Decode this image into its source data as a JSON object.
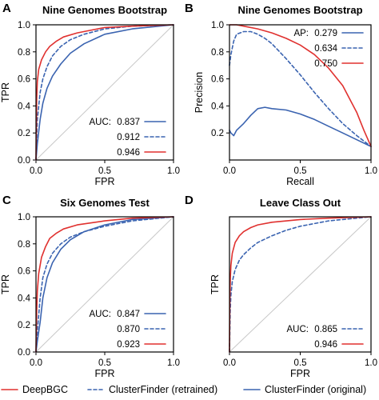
{
  "colors": {
    "deepbgc": "#e0312f",
    "cf_retrained": "#3a63b0",
    "cf_original": "#3a63b0",
    "diagonal": "#c8c8c8"
  },
  "legend": {
    "items": [
      {
        "label": "DeepBGC",
        "key": "deepbgc",
        "dash": "solid"
      },
      {
        "label": "ClusterFinder (retrained)",
        "key": "cf_retrained",
        "dash": "dashed"
      },
      {
        "label": "ClusterFinder (original)",
        "key": "cf_original",
        "dash": "solid"
      }
    ]
  },
  "chart_data": [
    {
      "panel": "A",
      "type": "line",
      "title": "Nine Genomes Bootstrap",
      "xlabel": "FPR",
      "ylabel": "TPR",
      "xlim": [
        0,
        1
      ],
      "ylim": [
        0,
        1
      ],
      "xticks": [
        "0.0",
        "0.5",
        "1.0"
      ],
      "yticks": [
        "0.0",
        "0.2",
        "0.4",
        "0.6",
        "0.8",
        "1.0"
      ],
      "diagonal": true,
      "legend_title": "AUC:",
      "legend_position": "bottom-right",
      "series": [
        {
          "key": "cf_original",
          "dash": "solid",
          "label": "0.837",
          "x": [
            0,
            0.01,
            0.03,
            0.05,
            0.08,
            0.12,
            0.18,
            0.25,
            0.35,
            0.5,
            0.7,
            1.0
          ],
          "y": [
            0,
            0.12,
            0.3,
            0.42,
            0.53,
            0.62,
            0.71,
            0.79,
            0.86,
            0.93,
            0.97,
            1.0
          ]
        },
        {
          "key": "cf_retrained",
          "dash": "dashed",
          "label": "0.912",
          "x": [
            0,
            0.01,
            0.03,
            0.05,
            0.08,
            0.12,
            0.18,
            0.25,
            0.35,
            0.5,
            0.7,
            1.0
          ],
          "y": [
            0,
            0.3,
            0.5,
            0.6,
            0.69,
            0.77,
            0.84,
            0.89,
            0.93,
            0.97,
            0.99,
            1.0
          ]
        },
        {
          "key": "deepbgc",
          "dash": "solid",
          "label": "0.946",
          "x": [
            0,
            0.005,
            0.01,
            0.02,
            0.04,
            0.07,
            0.1,
            0.15,
            0.2,
            0.3,
            0.5,
            0.7,
            1.0
          ],
          "y": [
            0,
            0.45,
            0.58,
            0.67,
            0.74,
            0.8,
            0.84,
            0.88,
            0.91,
            0.94,
            0.98,
            0.99,
            1.0
          ]
        }
      ]
    },
    {
      "panel": "B",
      "type": "line",
      "title": "Nine Genomes Bootstrap",
      "xlabel": "Recall",
      "ylabel": "Precision",
      "xlim": [
        0,
        1
      ],
      "ylim": [
        0.0,
        1.0
      ],
      "xticks": [
        "0.0",
        "0.5",
        "1.0"
      ],
      "yticks": [
        "0.2",
        "0.4",
        "0.6",
        "0.8",
        "1.0"
      ],
      "diagonal": false,
      "legend_title": "AP:",
      "legend_position": "top-right",
      "series": [
        {
          "key": "cf_original",
          "dash": "solid",
          "label": "0.279",
          "x": [
            0,
            0.01,
            0.03,
            0.05,
            0.1,
            0.15,
            0.2,
            0.25,
            0.3,
            0.4,
            0.5,
            0.6,
            0.7,
            0.8,
            0.9,
            1.0
          ],
          "y": [
            0.22,
            0.2,
            0.18,
            0.22,
            0.27,
            0.33,
            0.38,
            0.39,
            0.38,
            0.37,
            0.34,
            0.3,
            0.25,
            0.2,
            0.15,
            0.1
          ]
        },
        {
          "key": "cf_retrained",
          "dash": "dashed",
          "label": "0.634",
          "x": [
            0,
            0.01,
            0.03,
            0.05,
            0.1,
            0.15,
            0.2,
            0.25,
            0.3,
            0.4,
            0.5,
            0.6,
            0.7,
            0.8,
            0.9,
            1.0
          ],
          "y": [
            0.7,
            0.78,
            0.88,
            0.93,
            0.95,
            0.95,
            0.93,
            0.9,
            0.86,
            0.75,
            0.63,
            0.5,
            0.38,
            0.27,
            0.18,
            0.1
          ]
        },
        {
          "key": "deepbgc",
          "dash": "solid",
          "label": "0.750",
          "x": [
            0,
            0.05,
            0.1,
            0.2,
            0.3,
            0.4,
            0.5,
            0.6,
            0.7,
            0.8,
            0.9,
            0.95,
            1.0
          ],
          "y": [
            1.0,
            1.0,
            0.99,
            0.97,
            0.94,
            0.9,
            0.85,
            0.78,
            0.68,
            0.55,
            0.35,
            0.22,
            0.1
          ]
        }
      ]
    },
    {
      "panel": "C",
      "type": "line",
      "title": "Six Genomes Test",
      "xlabel": "FPR",
      "ylabel": "TPR",
      "xlim": [
        0,
        1
      ],
      "ylim": [
        0,
        1
      ],
      "xticks": [
        "0.0",
        "0.5",
        "1.0"
      ],
      "yticks": [
        "0.0",
        "0.2",
        "0.4",
        "0.6",
        "0.8",
        "1.0"
      ],
      "diagonal": true,
      "legend_title": "AUC:",
      "legend_position": "bottom-right",
      "series": [
        {
          "key": "cf_original",
          "dash": "solid",
          "label": "0.847",
          "x": [
            0,
            0.01,
            0.03,
            0.05,
            0.08,
            0.12,
            0.18,
            0.25,
            0.35,
            0.5,
            0.7,
            1.0
          ],
          "y": [
            0,
            0.08,
            0.22,
            0.4,
            0.55,
            0.66,
            0.76,
            0.83,
            0.89,
            0.94,
            0.98,
            1.0
          ]
        },
        {
          "key": "cf_retrained",
          "dash": "dashed",
          "label": "0.870",
          "x": [
            0,
            0.01,
            0.03,
            0.05,
            0.08,
            0.12,
            0.18,
            0.25,
            0.35,
            0.5,
            0.7,
            1.0
          ],
          "y": [
            0,
            0.15,
            0.4,
            0.55,
            0.65,
            0.73,
            0.8,
            0.85,
            0.89,
            0.93,
            0.97,
            1.0
          ]
        },
        {
          "key": "deepbgc",
          "dash": "solid",
          "label": "0.923",
          "x": [
            0,
            0.005,
            0.01,
            0.02,
            0.04,
            0.07,
            0.1,
            0.15,
            0.2,
            0.3,
            0.5,
            0.7,
            1.0
          ],
          "y": [
            0,
            0.3,
            0.45,
            0.58,
            0.7,
            0.78,
            0.84,
            0.88,
            0.91,
            0.94,
            0.97,
            0.99,
            1.0
          ]
        }
      ]
    },
    {
      "panel": "D",
      "type": "line",
      "title": "Leave Class Out",
      "xlabel": "FPR",
      "ylabel": "TPR",
      "xlim": [
        0,
        1
      ],
      "ylim": [
        0,
        1
      ],
      "xticks": [
        "0.0",
        "0.5",
        "1.0"
      ],
      "yticks": [],
      "diagonal": true,
      "legend_title": "AUC:",
      "legend_position": "bottom-right",
      "series": [
        {
          "key": "cf_retrained",
          "dash": "dashed",
          "label": "0.865",
          "x": [
            0,
            0.005,
            0.01,
            0.02,
            0.04,
            0.07,
            0.1,
            0.15,
            0.2,
            0.3,
            0.4,
            0.5,
            0.7,
            1.0
          ],
          "y": [
            0,
            0.3,
            0.42,
            0.52,
            0.61,
            0.68,
            0.72,
            0.77,
            0.81,
            0.86,
            0.9,
            0.93,
            0.97,
            1.0
          ]
        },
        {
          "key": "deepbgc",
          "dash": "solid",
          "label": "0.946",
          "x": [
            0,
            0.003,
            0.006,
            0.01,
            0.02,
            0.04,
            0.07,
            0.1,
            0.15,
            0.2,
            0.3,
            0.5,
            0.7,
            1.0
          ],
          "y": [
            0,
            0.4,
            0.55,
            0.64,
            0.73,
            0.81,
            0.86,
            0.89,
            0.92,
            0.94,
            0.96,
            0.98,
            0.99,
            1.0
          ]
        }
      ]
    }
  ]
}
